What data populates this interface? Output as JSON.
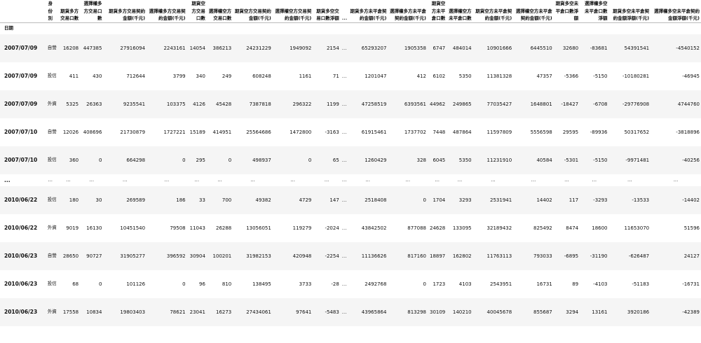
{
  "index_label": "日期",
  "columns": [
    "身份別",
    "期貨多方交易口數",
    "選擇權多方交易口數",
    "期貨多方交易契約金額(千元)",
    "選擇權多方交易契約金額(千元)",
    "期貨空方交易口數",
    "選擇權空方交易口數",
    "期貨空方交易契約金額(千元)",
    "選擇權空方交易契約金額(千元)",
    "期貨多空交易口數淨額",
    "...",
    "期貨多方未平倉契約金額(千元)",
    "選擇權多方未平倉契約金額(千元)",
    "期貨空方未平倉口數",
    "選擇權空方未平倉口數",
    "期貨空方未平倉契約金額(千元)",
    "選擇權空方未平倉契約金額(千元)",
    "期貨多空未平倉口數淨額",
    "選擇權多空未平倉口數淨額",
    "期貨多空未平倉契約金額淨額(千元)",
    "選擇權多空未平倉契約金額淨額(千元)"
  ],
  "rows": [
    {
      "date": "2007/07/09",
      "cells": [
        "自營商",
        "16208",
        "447385",
        "27916094",
        "2243161",
        "14054",
        "386213",
        "24231229",
        "1949092",
        "2154",
        "...",
        "65293207",
        "1905358",
        "6747",
        "484014",
        "10901666",
        "6445510",
        "32680",
        "-83681",
        "54391541",
        "-4540152"
      ]
    },
    {
      "date": "2007/07/09",
      "cells": [
        "投信",
        "411",
        "430",
        "712644",
        "3799",
        "340",
        "249",
        "608248",
        "1161",
        "71",
        "...",
        "1201047",
        "412",
        "6102",
        "5350",
        "11381328",
        "47357",
        "-5366",
        "-5150",
        "-10180281",
        "-46945"
      ]
    },
    {
      "date": "2007/07/09",
      "cells": [
        "外資及陸資",
        "5325",
        "26363",
        "9235541",
        "103375",
        "4126",
        "45428",
        "7387818",
        "296322",
        "1199",
        "...",
        "47258519",
        "6393561",
        "44962",
        "249865",
        "77035427",
        "1648801",
        "-18427",
        "-6708",
        "-29776908",
        "4744760"
      ]
    },
    {
      "date": "2007/07/10",
      "cells": [
        "自營商",
        "12026",
        "408696",
        "21730879",
        "1727221",
        "15189",
        "414951",
        "25564686",
        "1472800",
        "-3163",
        "...",
        "61915461",
        "1737702",
        "7448",
        "487864",
        "11597809",
        "5556598",
        "29595",
        "-89936",
        "50317652",
        "-3818896"
      ]
    },
    {
      "date": "2007/07/10",
      "cells": [
        "投信",
        "360",
        "0",
        "664298",
        "0",
        "295",
        "0",
        "498937",
        "0",
        "65",
        "...",
        "1260429",
        "328",
        "6045",
        "5350",
        "11231910",
        "40584",
        "-5301",
        "-5150",
        "-9971481",
        "-40256"
      ]
    },
    {
      "date": "...",
      "ellipsis": true,
      "cells": [
        "...",
        "...",
        "...",
        "...",
        "...",
        "...",
        "...",
        "...",
        "...",
        "...",
        "...",
        "...",
        "...",
        "...",
        "...",
        "...",
        "...",
        "...",
        "...",
        "...",
        "..."
      ]
    },
    {
      "date": "2010/06/22",
      "cells": [
        "投信",
        "180",
        "30",
        "269589",
        "186",
        "33",
        "700",
        "49382",
        "4729",
        "147",
        "...",
        "2518408",
        "0",
        "1704",
        "3293",
        "2531941",
        "14402",
        "117",
        "-3293",
        "-13533",
        "-14402"
      ]
    },
    {
      "date": "2010/06/22",
      "cells": [
        "外資及陸資",
        "9019",
        "16130",
        "10451540",
        "79508",
        "11043",
        "26288",
        "13056051",
        "119279",
        "-2024",
        "...",
        "43842502",
        "877088",
        "24628",
        "133095",
        "32189432",
        "825492",
        "8474",
        "18600",
        "11653070",
        "51596"
      ]
    },
    {
      "date": "2010/06/23",
      "cells": [
        "自營商",
        "28650",
        "90727",
        "31905277",
        "396592",
        "30904",
        "100201",
        "31982153",
        "420948",
        "-2254",
        "...",
        "11136626",
        "817160",
        "18897",
        "162802",
        "11763113",
        "793033",
        "-6895",
        "-31190",
        "-626487",
        "24127"
      ]
    },
    {
      "date": "2010/06/23",
      "cells": [
        "投信",
        "68",
        "0",
        "101126",
        "0",
        "96",
        "810",
        "138495",
        "3733",
        "-28",
        "...",
        "2492768",
        "0",
        "1723",
        "4103",
        "2543951",
        "16731",
        "89",
        "-4103",
        "-51183",
        "-16731"
      ]
    },
    {
      "date": "2010/06/23",
      "cells": [
        "外資及陸資",
        "17558",
        "10834",
        "19803403",
        "78621",
        "23041",
        "16273",
        "27434061",
        "97641",
        "-5483",
        "...",
        "43965864",
        "813298",
        "30109",
        "140210",
        "40045678",
        "855687",
        "3294",
        "13161",
        "3920186",
        "-42389"
      ]
    }
  ]
}
